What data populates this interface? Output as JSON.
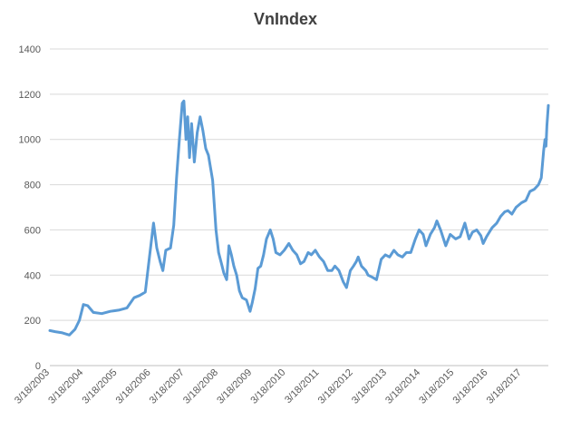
{
  "chart_data": {
    "type": "line",
    "title": "VnIndex",
    "xlabel": "",
    "ylabel": "",
    "ylim": [
      0,
      1400
    ],
    "yticks": [
      0,
      200,
      400,
      600,
      800,
      1000,
      1200,
      1400
    ],
    "xlim": [
      "2003-03-18",
      "2017-12-31"
    ],
    "xtick_labels": [
      "3/18/2003",
      "3/18/2004",
      "3/18/2005",
      "3/18/2006",
      "3/18/2007",
      "3/18/2008",
      "3/18/2009",
      "3/18/2010",
      "3/18/2011",
      "3/18/2012",
      "3/18/2013",
      "3/18/2014",
      "3/18/2015",
      "3/18/2016",
      "3/18/2017"
    ],
    "grid": true,
    "legend": "none",
    "series": [
      {
        "color": "#5b9bd5",
        "points": [
          [
            "2003-03-18",
            155
          ],
          [
            "2003-05-15",
            150
          ],
          [
            "2003-08-01",
            145
          ],
          [
            "2003-10-15",
            135
          ],
          [
            "2003-12-15",
            160
          ],
          [
            "2004-02-01",
            200
          ],
          [
            "2004-03-15",
            270
          ],
          [
            "2004-05-01",
            265
          ],
          [
            "2004-07-01",
            235
          ],
          [
            "2004-10-01",
            230
          ],
          [
            "2005-01-01",
            240
          ],
          [
            "2005-04-01",
            245
          ],
          [
            "2005-07-01",
            255
          ],
          [
            "2005-09-15",
            300
          ],
          [
            "2005-11-15",
            310
          ],
          [
            "2006-01-15",
            325
          ],
          [
            "2006-03-01",
            480
          ],
          [
            "2006-04-15",
            630
          ],
          [
            "2006-05-20",
            520
          ],
          [
            "2006-06-25",
            460
          ],
          [
            "2006-07-25",
            420
          ],
          [
            "2006-08-25",
            510
          ],
          [
            "2006-10-15",
            520
          ],
          [
            "2006-11-20",
            620
          ],
          [
            "2006-12-20",
            830
          ],
          [
            "2007-01-20",
            1000
          ],
          [
            "2007-02-20",
            1160
          ],
          [
            "2007-03-10",
            1170
          ],
          [
            "2007-04-01",
            1000
          ],
          [
            "2007-04-20",
            1100
          ],
          [
            "2007-05-10",
            920
          ],
          [
            "2007-06-01",
            1070
          ],
          [
            "2007-07-01",
            900
          ],
          [
            "2007-08-01",
            1030
          ],
          [
            "2007-09-01",
            1100
          ],
          [
            "2007-10-01",
            1040
          ],
          [
            "2007-11-01",
            960
          ],
          [
            "2007-12-01",
            930
          ],
          [
            "2008-01-15",
            820
          ],
          [
            "2008-02-20",
            600
          ],
          [
            "2008-03-20",
            500
          ],
          [
            "2008-04-20",
            450
          ],
          [
            "2008-05-15",
            410
          ],
          [
            "2008-06-15",
            380
          ],
          [
            "2008-07-10",
            530
          ],
          [
            "2008-08-05",
            490
          ],
          [
            "2008-09-01",
            440
          ],
          [
            "2008-10-01",
            400
          ],
          [
            "2008-11-01",
            330
          ],
          [
            "2008-12-01",
            300
          ],
          [
            "2009-01-15",
            290
          ],
          [
            "2009-02-24",
            240
          ],
          [
            "2009-03-20",
            280
          ],
          [
            "2009-04-20",
            340
          ],
          [
            "2009-05-20",
            430
          ],
          [
            "2009-06-20",
            440
          ],
          [
            "2009-07-20",
            490
          ],
          [
            "2009-08-20",
            560
          ],
          [
            "2009-10-01",
            600
          ],
          [
            "2009-11-01",
            560
          ],
          [
            "2009-12-01",
            500
          ],
          [
            "2010-01-15",
            490
          ],
          [
            "2010-03-01",
            510
          ],
          [
            "2010-04-20",
            540
          ],
          [
            "2010-06-01",
            510
          ],
          [
            "2010-07-15",
            490
          ],
          [
            "2010-08-25",
            450
          ],
          [
            "2010-10-01",
            460
          ],
          [
            "2010-11-15",
            500
          ],
          [
            "2010-12-20",
            490
          ],
          [
            "2011-02-01",
            510
          ],
          [
            "2011-03-18",
            480
          ],
          [
            "2011-05-01",
            460
          ],
          [
            "2011-06-15",
            420
          ],
          [
            "2011-07-30",
            420
          ],
          [
            "2011-09-01",
            440
          ],
          [
            "2011-10-15",
            420
          ],
          [
            "2011-12-01",
            370
          ],
          [
            "2012-01-05",
            345
          ],
          [
            "2012-02-15",
            420
          ],
          [
            "2012-03-20",
            440
          ],
          [
            "2012-04-20",
            460
          ],
          [
            "2012-05-10",
            480
          ],
          [
            "2012-06-15",
            440
          ],
          [
            "2012-08-01",
            420
          ],
          [
            "2012-08-25",
            400
          ],
          [
            "2012-10-15",
            390
          ],
          [
            "2012-11-25",
            380
          ],
          [
            "2013-01-15",
            470
          ],
          [
            "2013-03-01",
            490
          ],
          [
            "2013-04-15",
            480
          ],
          [
            "2013-06-01",
            510
          ],
          [
            "2013-07-15",
            490
          ],
          [
            "2013-09-01",
            480
          ],
          [
            "2013-10-15",
            500
          ],
          [
            "2013-12-01",
            500
          ],
          [
            "2014-01-20",
            560
          ],
          [
            "2014-03-01",
            600
          ],
          [
            "2014-04-15",
            580
          ],
          [
            "2014-05-15",
            530
          ],
          [
            "2014-07-01",
            580
          ],
          [
            "2014-08-15",
            610
          ],
          [
            "2014-09-10",
            640
          ],
          [
            "2014-10-20",
            600
          ],
          [
            "2014-12-15",
            530
          ],
          [
            "2015-02-01",
            580
          ],
          [
            "2015-04-01",
            560
          ],
          [
            "2015-05-20",
            570
          ],
          [
            "2015-07-10",
            630
          ],
          [
            "2015-08-25",
            560
          ],
          [
            "2015-10-01",
            590
          ],
          [
            "2015-11-15",
            600
          ],
          [
            "2015-12-30",
            575
          ],
          [
            "2016-01-25",
            540
          ],
          [
            "2016-03-01",
            570
          ],
          [
            "2016-05-01",
            610
          ],
          [
            "2016-06-20",
            630
          ],
          [
            "2016-08-01",
            660
          ],
          [
            "2016-09-15",
            680
          ],
          [
            "2016-10-20",
            685
          ],
          [
            "2016-12-01",
            670
          ],
          [
            "2017-01-15",
            700
          ],
          [
            "2017-03-15",
            720
          ],
          [
            "2017-05-01",
            730
          ],
          [
            "2017-06-15",
            770
          ],
          [
            "2017-08-01",
            780
          ],
          [
            "2017-09-15",
            800
          ],
          [
            "2017-10-15",
            830
          ],
          [
            "2017-11-10",
            950
          ],
          [
            "2017-11-25",
            1000
          ],
          [
            "2017-12-05",
            970
          ],
          [
            "2017-12-15",
            1060
          ],
          [
            "2017-12-31",
            1150
          ]
        ]
      }
    ]
  }
}
